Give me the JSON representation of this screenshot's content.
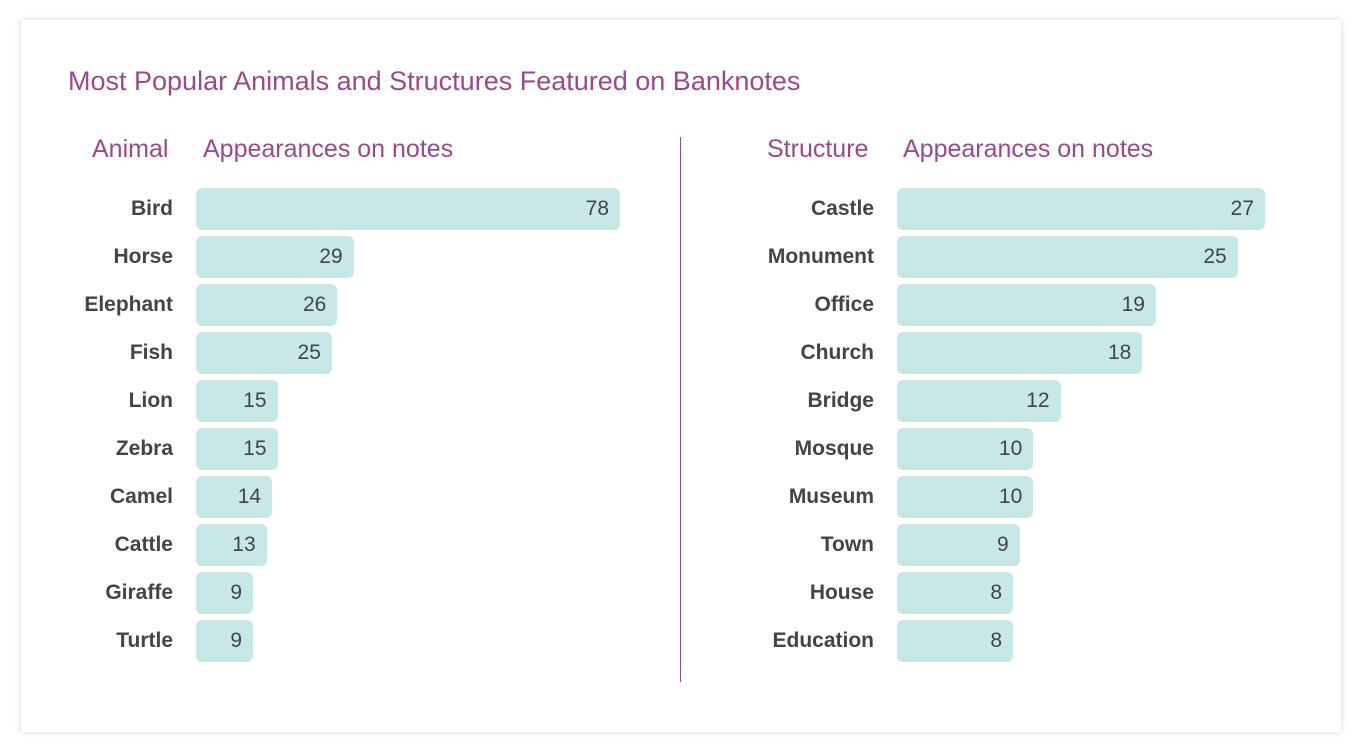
{
  "title": "Most Popular Animals and Structures Featured on Banknotes",
  "chart_data": [
    {
      "type": "bar",
      "orientation": "horizontal",
      "category_header": "Animal",
      "value_header": "Appearances on notes",
      "categories": [
        "Bird",
        "Horse",
        "Elephant",
        "Fish",
        "Lion",
        "Zebra",
        "Camel",
        "Cattle",
        "Giraffe",
        "Turtle"
      ],
      "values": [
        78,
        29,
        26,
        25,
        15,
        15,
        14,
        13,
        9,
        9
      ],
      "bar_color": "#c8e8e8"
    },
    {
      "type": "bar",
      "orientation": "horizontal",
      "category_header": "Structure",
      "value_header": "Appearances on notes",
      "categories": [
        "Castle",
        "Monument",
        "Office",
        "Church",
        "Bridge",
        "Mosque",
        "Museum",
        "Town",
        "House",
        "Education"
      ],
      "values": [
        27,
        25,
        19,
        18,
        12,
        10,
        10,
        9,
        8,
        8
      ],
      "bar_color": "#c8e8e8"
    }
  ],
  "colors": {
    "accent": "#9a4a8c",
    "divider": "#8e4a85",
    "label_text": "#444444",
    "bar": "#c8e8e8"
  }
}
